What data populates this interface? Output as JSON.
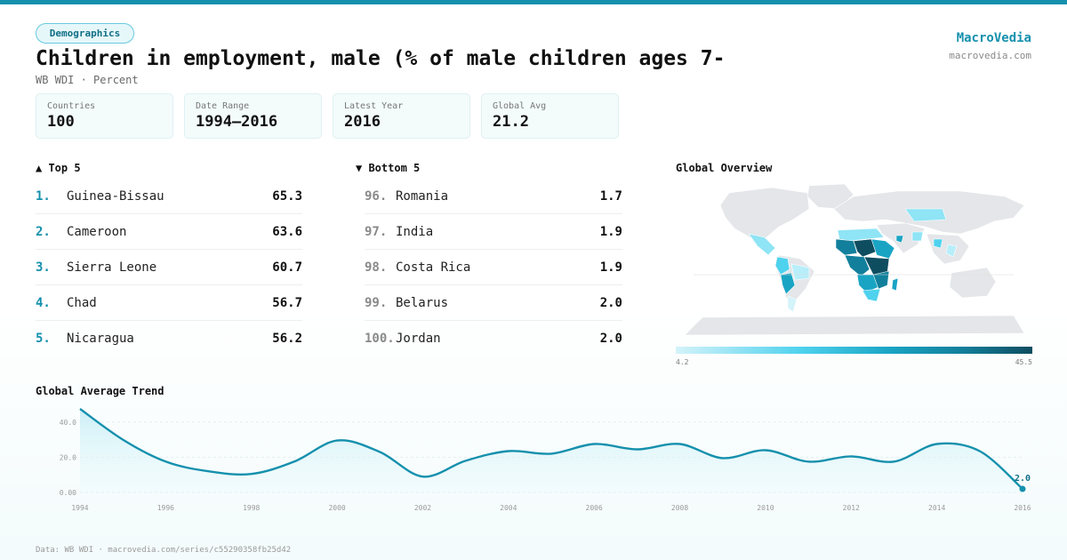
{
  "tag": "Demographics",
  "title": "Children in employment, male (% of male children ages 7-",
  "subtitle": "WB WDI · Percent",
  "brand": {
    "name": "MacroVedia",
    "url": "macrovedia.com"
  },
  "stats": [
    {
      "label": "Countries",
      "value": "100"
    },
    {
      "label": "Date Range",
      "value": "1994–2016"
    },
    {
      "label": "Latest Year",
      "value": "2016"
    },
    {
      "label": "Global Avg",
      "value": "21.2"
    }
  ],
  "top5": {
    "title": "▲ Top 5",
    "items": [
      {
        "rank": "1.",
        "name": "Guinea-Bissau",
        "value": "65.3"
      },
      {
        "rank": "2.",
        "name": "Cameroon",
        "value": "63.6"
      },
      {
        "rank": "3.",
        "name": "Sierra Leone",
        "value": "60.7"
      },
      {
        "rank": "4.",
        "name": "Chad",
        "value": "56.7"
      },
      {
        "rank": "5.",
        "name": "Nicaragua",
        "value": "56.2"
      }
    ]
  },
  "bottom5": {
    "title": "▼ Bottom 5",
    "items": [
      {
        "rank": "96.",
        "name": "Romania",
        "value": "1.7"
      },
      {
        "rank": "97.",
        "name": "India",
        "value": "1.9"
      },
      {
        "rank": "98.",
        "name": "Costa Rica",
        "value": "1.9"
      },
      {
        "rank": "99.",
        "name": "Belarus",
        "value": "2.0"
      },
      {
        "rank": "100.",
        "name": "Jordan",
        "value": "2.0"
      }
    ]
  },
  "map": {
    "title": "Global Overview",
    "legend_min": "4.2",
    "legend_max": "45.5"
  },
  "trend": {
    "title": "Global Average Trend"
  },
  "chart_data": {
    "type": "area",
    "x": [
      1994,
      1995,
      1996,
      1997,
      1998,
      1999,
      2000,
      2001,
      2002,
      2003,
      2004,
      2005,
      2006,
      2007,
      2008,
      2009,
      2010,
      2011,
      2012,
      2013,
      2014,
      2015,
      2016
    ],
    "series": [
      {
        "values": [
          47.5,
          30.0,
          17.5,
          12.0,
          10.5,
          17.5,
          29.5,
          23.0,
          9.0,
          18.0,
          23.5,
          22.0,
          27.5,
          24.5,
          27.5,
          19.5,
          24.0,
          17.5,
          20.5,
          17.5,
          27.5,
          23.5,
          2.0
        ]
      }
    ],
    "x_ticks": [
      "1994",
      "1996",
      "1998",
      "2000",
      "2002",
      "2004",
      "2006",
      "2008",
      "2010",
      "2012",
      "2014",
      "2016"
    ],
    "y_ticks": [
      "0.00",
      "20.0",
      "40.0"
    ],
    "ylim": [
      0,
      50
    ],
    "end_label": "2.0",
    "colors": {
      "line": "#1590ad",
      "fill": "#d9f3f8"
    }
  },
  "footer": "Data: WB WDI · macrovedia.com/series/c55290358fb25d42"
}
